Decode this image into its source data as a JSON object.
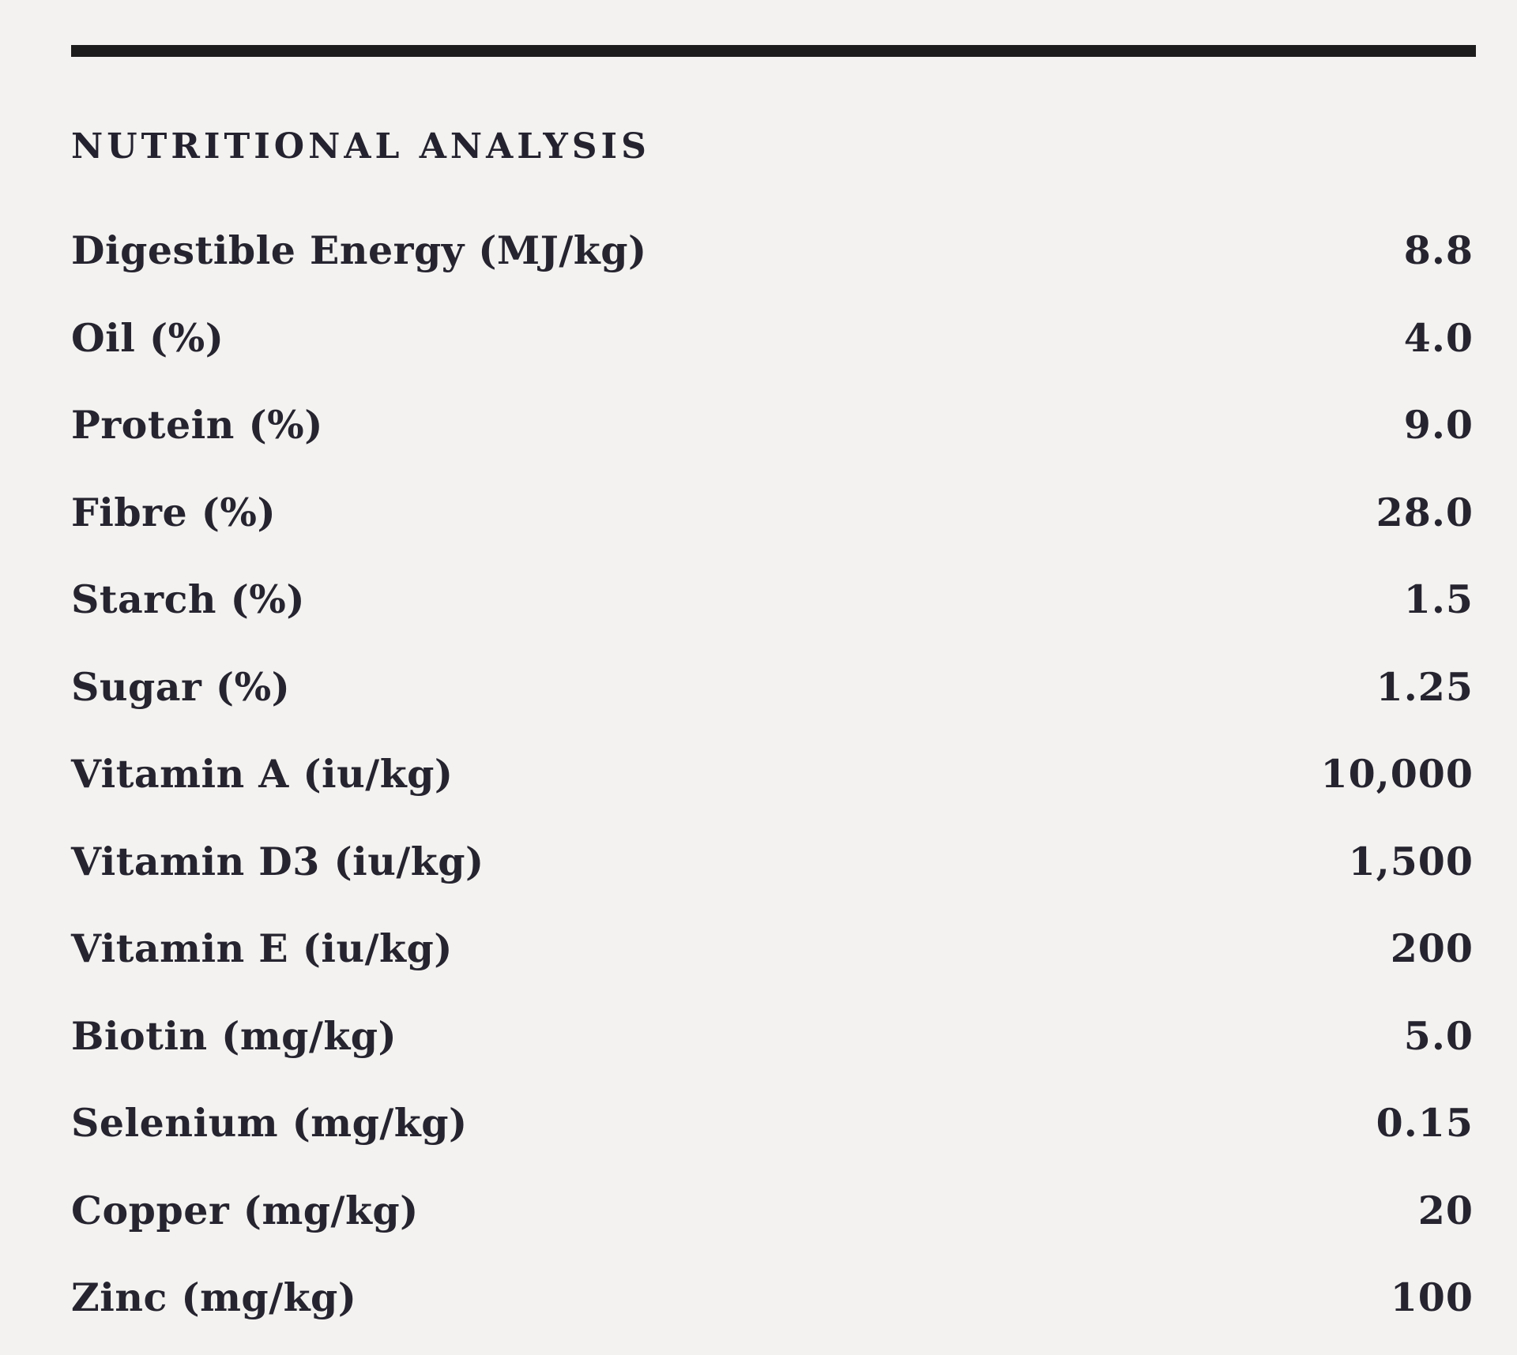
{
  "page": {
    "title": "NUTRITIONAL ANALYSIS"
  },
  "colors": {
    "background": "#f3f2f0",
    "text_ink": "#26242f",
    "rule": "#1d1c1c"
  },
  "table": {
    "rows": [
      {
        "label": "Digestible Energy (MJ/kg)",
        "value": "8.8"
      },
      {
        "label": "Oil (%)",
        "value": "4.0"
      },
      {
        "label": "Protein (%)",
        "value": "9.0"
      },
      {
        "label": "Fibre (%)",
        "value": "28.0"
      },
      {
        "label": "Starch (%)",
        "value": "1.5"
      },
      {
        "label": "Sugar (%)",
        "value": "1.25"
      },
      {
        "label": "Vitamin A (iu/kg)",
        "value": "10,000"
      },
      {
        "label": "Vitamin D3 (iu/kg)",
        "value": "1,500"
      },
      {
        "label": "Vitamin E (iu/kg)",
        "value": "200"
      },
      {
        "label": "Biotin (mg/kg)",
        "value": "5.0"
      },
      {
        "label": "Selenium (mg/kg)",
        "value": "0.15"
      },
      {
        "label": "Copper (mg/kg)",
        "value": "20"
      },
      {
        "label": "Zinc (mg/kg)",
        "value": "100"
      }
    ]
  }
}
